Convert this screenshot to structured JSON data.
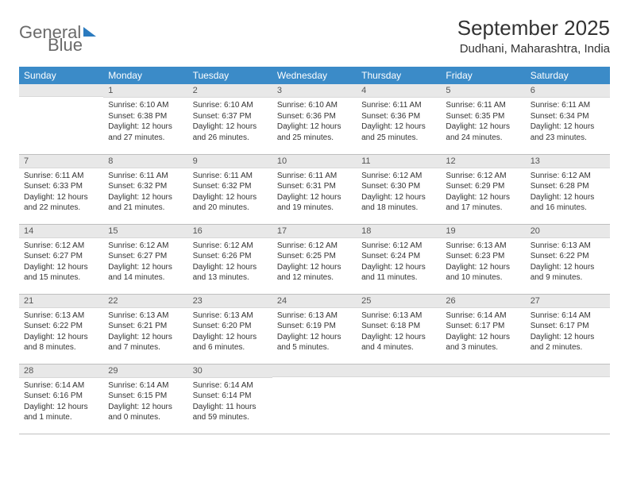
{
  "logo": {
    "word1": "General",
    "word2": "Blue"
  },
  "header": {
    "month_title": "September 2025",
    "location": "Dudhani, Maharashtra, India"
  },
  "colors": {
    "header_bg": "#3b8bc8",
    "header_text": "#ffffff",
    "daynum_bg": "#e8e8e8",
    "border": "#bfbfbf",
    "text": "#333333",
    "logo_gray": "#6a6a6a",
    "logo_blue": "#2b7bbf"
  },
  "weekdays": [
    "Sunday",
    "Monday",
    "Tuesday",
    "Wednesday",
    "Thursday",
    "Friday",
    "Saturday"
  ],
  "weeks": [
    [
      {
        "day": "",
        "sunrise": "",
        "sunset": "",
        "daylight": ""
      },
      {
        "day": "1",
        "sunrise": "Sunrise: 6:10 AM",
        "sunset": "Sunset: 6:38 PM",
        "daylight": "Daylight: 12 hours and 27 minutes."
      },
      {
        "day": "2",
        "sunrise": "Sunrise: 6:10 AM",
        "sunset": "Sunset: 6:37 PM",
        "daylight": "Daylight: 12 hours and 26 minutes."
      },
      {
        "day": "3",
        "sunrise": "Sunrise: 6:10 AM",
        "sunset": "Sunset: 6:36 PM",
        "daylight": "Daylight: 12 hours and 25 minutes."
      },
      {
        "day": "4",
        "sunrise": "Sunrise: 6:11 AM",
        "sunset": "Sunset: 6:36 PM",
        "daylight": "Daylight: 12 hours and 25 minutes."
      },
      {
        "day": "5",
        "sunrise": "Sunrise: 6:11 AM",
        "sunset": "Sunset: 6:35 PM",
        "daylight": "Daylight: 12 hours and 24 minutes."
      },
      {
        "day": "6",
        "sunrise": "Sunrise: 6:11 AM",
        "sunset": "Sunset: 6:34 PM",
        "daylight": "Daylight: 12 hours and 23 minutes."
      }
    ],
    [
      {
        "day": "7",
        "sunrise": "Sunrise: 6:11 AM",
        "sunset": "Sunset: 6:33 PM",
        "daylight": "Daylight: 12 hours and 22 minutes."
      },
      {
        "day": "8",
        "sunrise": "Sunrise: 6:11 AM",
        "sunset": "Sunset: 6:32 PM",
        "daylight": "Daylight: 12 hours and 21 minutes."
      },
      {
        "day": "9",
        "sunrise": "Sunrise: 6:11 AM",
        "sunset": "Sunset: 6:32 PM",
        "daylight": "Daylight: 12 hours and 20 minutes."
      },
      {
        "day": "10",
        "sunrise": "Sunrise: 6:11 AM",
        "sunset": "Sunset: 6:31 PM",
        "daylight": "Daylight: 12 hours and 19 minutes."
      },
      {
        "day": "11",
        "sunrise": "Sunrise: 6:12 AM",
        "sunset": "Sunset: 6:30 PM",
        "daylight": "Daylight: 12 hours and 18 minutes."
      },
      {
        "day": "12",
        "sunrise": "Sunrise: 6:12 AM",
        "sunset": "Sunset: 6:29 PM",
        "daylight": "Daylight: 12 hours and 17 minutes."
      },
      {
        "day": "13",
        "sunrise": "Sunrise: 6:12 AM",
        "sunset": "Sunset: 6:28 PM",
        "daylight": "Daylight: 12 hours and 16 minutes."
      }
    ],
    [
      {
        "day": "14",
        "sunrise": "Sunrise: 6:12 AM",
        "sunset": "Sunset: 6:27 PM",
        "daylight": "Daylight: 12 hours and 15 minutes."
      },
      {
        "day": "15",
        "sunrise": "Sunrise: 6:12 AM",
        "sunset": "Sunset: 6:27 PM",
        "daylight": "Daylight: 12 hours and 14 minutes."
      },
      {
        "day": "16",
        "sunrise": "Sunrise: 6:12 AM",
        "sunset": "Sunset: 6:26 PM",
        "daylight": "Daylight: 12 hours and 13 minutes."
      },
      {
        "day": "17",
        "sunrise": "Sunrise: 6:12 AM",
        "sunset": "Sunset: 6:25 PM",
        "daylight": "Daylight: 12 hours and 12 minutes."
      },
      {
        "day": "18",
        "sunrise": "Sunrise: 6:12 AM",
        "sunset": "Sunset: 6:24 PM",
        "daylight": "Daylight: 12 hours and 11 minutes."
      },
      {
        "day": "19",
        "sunrise": "Sunrise: 6:13 AM",
        "sunset": "Sunset: 6:23 PM",
        "daylight": "Daylight: 12 hours and 10 minutes."
      },
      {
        "day": "20",
        "sunrise": "Sunrise: 6:13 AM",
        "sunset": "Sunset: 6:22 PM",
        "daylight": "Daylight: 12 hours and 9 minutes."
      }
    ],
    [
      {
        "day": "21",
        "sunrise": "Sunrise: 6:13 AM",
        "sunset": "Sunset: 6:22 PM",
        "daylight": "Daylight: 12 hours and 8 minutes."
      },
      {
        "day": "22",
        "sunrise": "Sunrise: 6:13 AM",
        "sunset": "Sunset: 6:21 PM",
        "daylight": "Daylight: 12 hours and 7 minutes."
      },
      {
        "day": "23",
        "sunrise": "Sunrise: 6:13 AM",
        "sunset": "Sunset: 6:20 PM",
        "daylight": "Daylight: 12 hours and 6 minutes."
      },
      {
        "day": "24",
        "sunrise": "Sunrise: 6:13 AM",
        "sunset": "Sunset: 6:19 PM",
        "daylight": "Daylight: 12 hours and 5 minutes."
      },
      {
        "day": "25",
        "sunrise": "Sunrise: 6:13 AM",
        "sunset": "Sunset: 6:18 PM",
        "daylight": "Daylight: 12 hours and 4 minutes."
      },
      {
        "day": "26",
        "sunrise": "Sunrise: 6:14 AM",
        "sunset": "Sunset: 6:17 PM",
        "daylight": "Daylight: 12 hours and 3 minutes."
      },
      {
        "day": "27",
        "sunrise": "Sunrise: 6:14 AM",
        "sunset": "Sunset: 6:17 PM",
        "daylight": "Daylight: 12 hours and 2 minutes."
      }
    ],
    [
      {
        "day": "28",
        "sunrise": "Sunrise: 6:14 AM",
        "sunset": "Sunset: 6:16 PM",
        "daylight": "Daylight: 12 hours and 1 minute."
      },
      {
        "day": "29",
        "sunrise": "Sunrise: 6:14 AM",
        "sunset": "Sunset: 6:15 PM",
        "daylight": "Daylight: 12 hours and 0 minutes."
      },
      {
        "day": "30",
        "sunrise": "Sunrise: 6:14 AM",
        "sunset": "Sunset: 6:14 PM",
        "daylight": "Daylight: 11 hours and 59 minutes."
      },
      {
        "day": "",
        "sunrise": "",
        "sunset": "",
        "daylight": ""
      },
      {
        "day": "",
        "sunrise": "",
        "sunset": "",
        "daylight": ""
      },
      {
        "day": "",
        "sunrise": "",
        "sunset": "",
        "daylight": ""
      },
      {
        "day": "",
        "sunrise": "",
        "sunset": "",
        "daylight": ""
      }
    ]
  ]
}
